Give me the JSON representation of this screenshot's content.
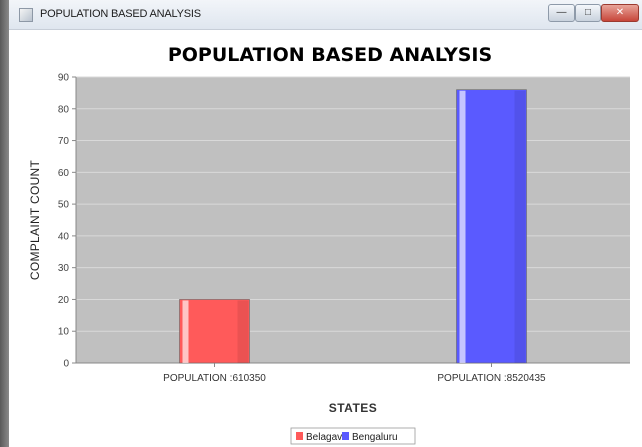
{
  "window": {
    "title": "POPULATION BASED ANALYSIS",
    "minimize_icon": "minimize-icon",
    "maximize_icon": "maximize-icon",
    "close_icon": "close-icon",
    "close_glyph": "✕"
  },
  "chart_data": {
    "type": "bar",
    "title": "POPULATION BASED ANALYSIS",
    "xlabel": "STATES",
    "ylabel": "COMPLAINT COUNT",
    "ylim": [
      0,
      90
    ],
    "yticks": [
      0,
      10,
      20,
      30,
      40,
      50,
      60,
      70,
      80,
      90
    ],
    "categories": [
      "POPULATION :610350",
      "POPULATION :8520435"
    ],
    "series": [
      {
        "name": "Belagavi",
        "color": "#ff5a5a",
        "values": [
          20,
          null
        ]
      },
      {
        "name": "Bengaluru",
        "color": "#5a5aff",
        "values": [
          null,
          86
        ]
      }
    ],
    "legend": "bottom",
    "grid": true,
    "plot_background": "#c0c0c0"
  }
}
